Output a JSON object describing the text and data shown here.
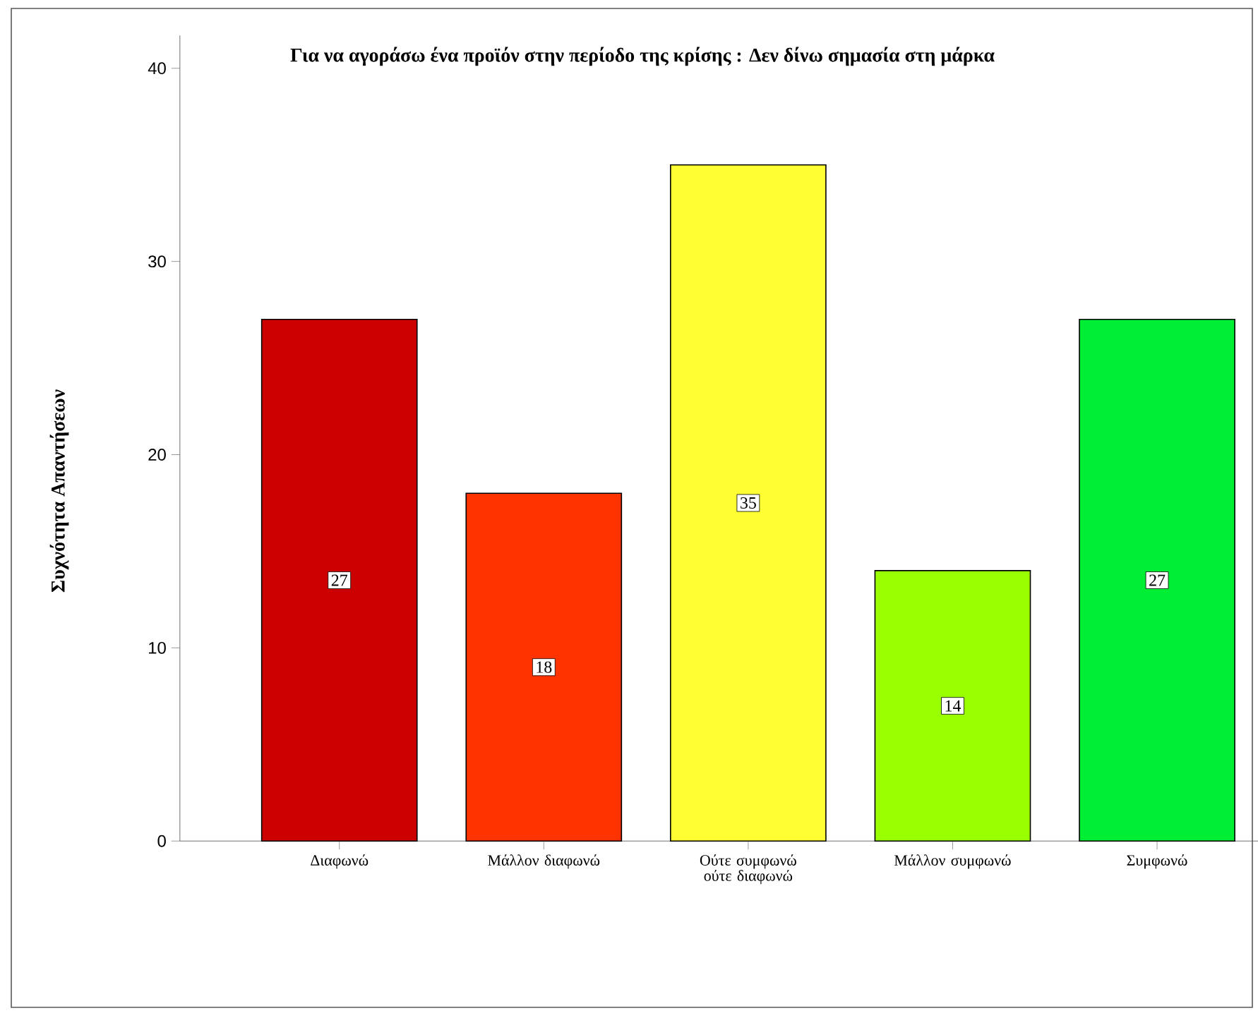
{
  "chart_data": {
    "type": "bar",
    "title": "Για να αγοράσω ένα προϊόν στην περίοδο της κρίσης : Δεν δίνω σημασία στη μάρκα",
    "ylabel": "Συχνότητα Απαντήσεων",
    "categories": [
      "Διαφωνώ",
      "Μάλλον διαφωνώ",
      "Ούτε συμφωνώ ούτε διαφωνώ",
      "Μάλλον συμφωνώ",
      "Συμφωνώ"
    ],
    "values": [
      27,
      18,
      35,
      14,
      27
    ],
    "colors": [
      "#cc0000",
      "#ff3300",
      "#ffff33",
      "#99ff00",
      "#00ee33"
    ],
    "ylim": [
      0,
      41.7
    ],
    "yticks": [
      0,
      10,
      20,
      30,
      40
    ],
    "data_labels": true
  }
}
